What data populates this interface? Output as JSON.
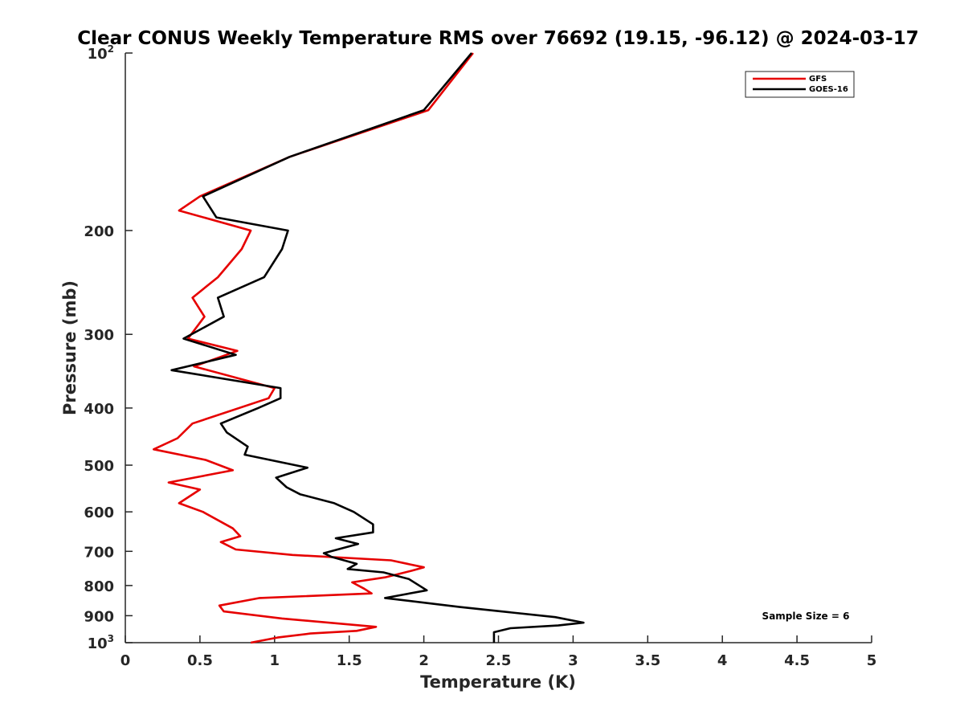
{
  "chart_data": {
    "type": "line",
    "title": "Clear CONUS Weekly Temperature RMS over 76692 (19.15, -96.12) @ 2024-03-17",
    "xlabel": "Temperature (K)",
    "ylabel": "Pressure (mb)",
    "xlim": [
      0,
      5
    ],
    "ylim": [
      100,
      1000
    ],
    "y_scale": "log",
    "y_reversed": true,
    "grid": false,
    "legend_position": "top-right",
    "x_ticks": [
      "0",
      "0.5",
      "1",
      "1.5",
      "2",
      "2.5",
      "3",
      "3.5",
      "4",
      "4.5",
      "5"
    ],
    "y_ticks": [
      {
        "value": 100,
        "base": "10",
        "exp": "2"
      },
      {
        "value": 200,
        "label": "200"
      },
      {
        "value": 300,
        "label": "300"
      },
      {
        "value": 400,
        "label": "400"
      },
      {
        "value": 500,
        "label": "500"
      },
      {
        "value": 600,
        "label": "600"
      },
      {
        "value": 700,
        "label": "700"
      },
      {
        "value": 800,
        "label": "800"
      },
      {
        "value": 900,
        "label": "900"
      },
      {
        "value": 1000,
        "base": "10",
        "exp": "3"
      }
    ],
    "annotation": "Sample Size = 6",
    "series": [
      {
        "name": "GFS",
        "color": "#e60000",
        "points": [
          [
            2.33,
            100
          ],
          [
            2.03,
            125
          ],
          [
            1.1,
            150
          ],
          [
            0.5,
            175
          ],
          [
            0.36,
            185
          ],
          [
            0.84,
            200
          ],
          [
            0.78,
            215
          ],
          [
            0.62,
            240
          ],
          [
            0.45,
            260
          ],
          [
            0.53,
            280
          ],
          [
            0.42,
            305
          ],
          [
            0.75,
            320
          ],
          [
            0.46,
            340
          ],
          [
            1.0,
            370
          ],
          [
            0.96,
            385
          ],
          [
            0.45,
            425
          ],
          [
            0.35,
            450
          ],
          [
            0.19,
            470
          ],
          [
            0.54,
            490
          ],
          [
            0.72,
            510
          ],
          [
            0.29,
            535
          ],
          [
            0.5,
            550
          ],
          [
            0.36,
            580
          ],
          [
            0.52,
            600
          ],
          [
            0.72,
            640
          ],
          [
            0.77,
            660
          ],
          [
            0.64,
            675
          ],
          [
            0.74,
            695
          ],
          [
            1.12,
            710
          ],
          [
            1.78,
            725
          ],
          [
            2.0,
            745
          ],
          [
            1.92,
            755
          ],
          [
            1.74,
            775
          ],
          [
            1.52,
            790
          ],
          [
            1.6,
            810
          ],
          [
            1.65,
            825
          ],
          [
            0.9,
            840
          ],
          [
            0.63,
            865
          ],
          [
            0.66,
            885
          ],
          [
            1.05,
            910
          ],
          [
            1.68,
            940
          ],
          [
            1.55,
            955
          ],
          [
            1.24,
            965
          ],
          [
            1.02,
            980
          ],
          [
            0.84,
            1000
          ]
        ]
      },
      {
        "name": "GOES-16",
        "color": "#000000",
        "points": [
          [
            2.32,
            100
          ],
          [
            2.0,
            125
          ],
          [
            1.1,
            150
          ],
          [
            0.52,
            175
          ],
          [
            0.61,
            190
          ],
          [
            1.09,
            200
          ],
          [
            1.05,
            215
          ],
          [
            0.93,
            240
          ],
          [
            0.62,
            260
          ],
          [
            0.66,
            280
          ],
          [
            0.39,
            305
          ],
          [
            0.74,
            325
          ],
          [
            0.31,
            345
          ],
          [
            1.04,
            370
          ],
          [
            1.04,
            385
          ],
          [
            0.89,
            400
          ],
          [
            0.64,
            425
          ],
          [
            0.68,
            440
          ],
          [
            0.82,
            465
          ],
          [
            0.8,
            480
          ],
          [
            1.22,
            505
          ],
          [
            1.01,
            525
          ],
          [
            1.08,
            545
          ],
          [
            1.17,
            560
          ],
          [
            1.4,
            580
          ],
          [
            1.53,
            600
          ],
          [
            1.66,
            630
          ],
          [
            1.66,
            650
          ],
          [
            1.41,
            665
          ],
          [
            1.56,
            680
          ],
          [
            1.33,
            705
          ],
          [
            1.38,
            715
          ],
          [
            1.55,
            735
          ],
          [
            1.49,
            750
          ],
          [
            1.73,
            760
          ],
          [
            1.9,
            780
          ],
          [
            2.02,
            815
          ],
          [
            1.74,
            840
          ],
          [
            2.24,
            870
          ],
          [
            2.88,
            905
          ],
          [
            3.07,
            925
          ],
          [
            2.9,
            935
          ],
          [
            2.58,
            945
          ],
          [
            2.47,
            960
          ],
          [
            2.47,
            1000
          ]
        ]
      }
    ]
  }
}
